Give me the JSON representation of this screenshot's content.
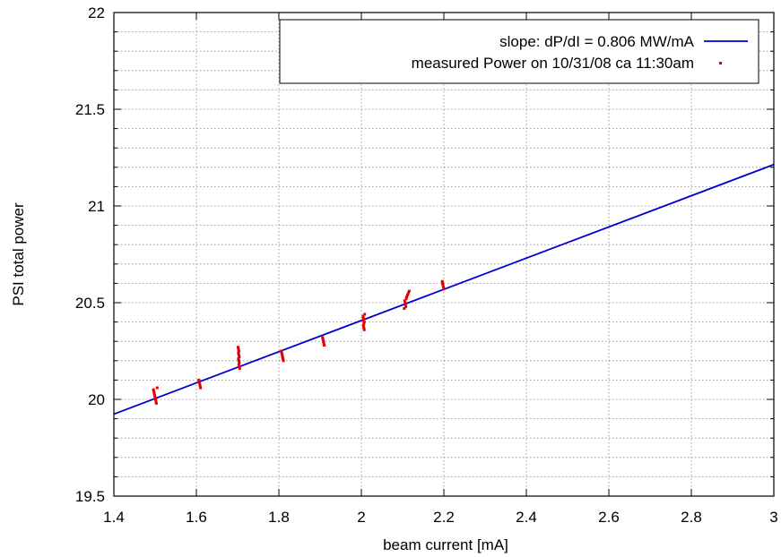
{
  "chart_data": {
    "type": "scatter",
    "title": "",
    "xlabel": "beam current [mA]",
    "ylabel": "PSI total power",
    "xlim": [
      1.4,
      3
    ],
    "ylim": [
      19.5,
      22
    ],
    "x_ticks": [
      "1.4",
      "1.6",
      "1.8",
      "2",
      "2.2",
      "2.4",
      "2.6",
      "2.8",
      "3"
    ],
    "y_ticks": [
      "19.5",
      "20",
      "20.5",
      "21",
      "21.5",
      "22"
    ],
    "grid": true,
    "minor_grid_y": true,
    "legend_position": "top-right",
    "fit_line": {
      "name": "slope: dP/dI = 0.806 MW/mA",
      "color": "#0000cc",
      "x": [
        1.4,
        3
      ],
      "y": [
        19.924,
        21.214
      ]
    },
    "series": [
      {
        "name": "measured Power on 10/31/08 ca 11:30am",
        "color": "#e00000",
        "points": [
          {
            "x": 1.496,
            "y": 20.05
          },
          {
            "x": 1.497,
            "y": 20.04
          },
          {
            "x": 1.498,
            "y": 20.03
          },
          {
            "x": 1.499,
            "y": 20.02
          },
          {
            "x": 1.5,
            "y": 20.01
          },
          {
            "x": 1.501,
            "y": 20.0
          },
          {
            "x": 1.502,
            "y": 19.99
          },
          {
            "x": 1.503,
            "y": 19.98
          },
          {
            "x": 1.505,
            "y": 20.06
          },
          {
            "x": 1.606,
            "y": 20.1
          },
          {
            "x": 1.607,
            "y": 20.09
          },
          {
            "x": 1.608,
            "y": 20.08
          },
          {
            "x": 1.609,
            "y": 20.07
          },
          {
            "x": 1.61,
            "y": 20.06
          },
          {
            "x": 1.701,
            "y": 20.27
          },
          {
            "x": 1.702,
            "y": 20.26
          },
          {
            "x": 1.703,
            "y": 20.25
          },
          {
            "x": 1.702,
            "y": 20.24
          },
          {
            "x": 1.703,
            "y": 20.23
          },
          {
            "x": 1.704,
            "y": 20.22
          },
          {
            "x": 1.702,
            "y": 20.21
          },
          {
            "x": 1.703,
            "y": 20.2
          },
          {
            "x": 1.704,
            "y": 20.19
          },
          {
            "x": 1.703,
            "y": 20.18
          },
          {
            "x": 1.704,
            "y": 20.17
          },
          {
            "x": 1.705,
            "y": 20.16
          },
          {
            "x": 1.806,
            "y": 20.25
          },
          {
            "x": 1.807,
            "y": 20.24
          },
          {
            "x": 1.808,
            "y": 20.23
          },
          {
            "x": 1.809,
            "y": 20.22
          },
          {
            "x": 1.81,
            "y": 20.21
          },
          {
            "x": 1.811,
            "y": 20.2
          },
          {
            "x": 1.906,
            "y": 20.32
          },
          {
            "x": 1.907,
            "y": 20.31
          },
          {
            "x": 1.908,
            "y": 20.3
          },
          {
            "x": 1.909,
            "y": 20.29
          },
          {
            "x": 1.91,
            "y": 20.28
          },
          {
            "x": 2.004,
            "y": 20.43
          },
          {
            "x": 2.005,
            "y": 20.42
          },
          {
            "x": 2.006,
            "y": 20.41
          },
          {
            "x": 2.007,
            "y": 20.4
          },
          {
            "x": 2.006,
            "y": 20.39
          },
          {
            "x": 2.005,
            "y": 20.38
          },
          {
            "x": 2.006,
            "y": 20.37
          },
          {
            "x": 2.007,
            "y": 20.36
          },
          {
            "x": 2.008,
            "y": 20.44
          },
          {
            "x": 2.105,
            "y": 20.51
          },
          {
            "x": 2.106,
            "y": 20.5
          },
          {
            "x": 2.107,
            "y": 20.49
          },
          {
            "x": 2.108,
            "y": 20.48
          },
          {
            "x": 2.109,
            "y": 20.52
          },
          {
            "x": 2.11,
            "y": 20.53
          },
          {
            "x": 2.112,
            "y": 20.54
          },
          {
            "x": 2.114,
            "y": 20.55
          },
          {
            "x": 2.116,
            "y": 20.56
          },
          {
            "x": 2.104,
            "y": 20.47
          },
          {
            "x": 2.196,
            "y": 20.61
          },
          {
            "x": 2.197,
            "y": 20.6
          },
          {
            "x": 2.198,
            "y": 20.59
          },
          {
            "x": 2.199,
            "y": 20.58
          },
          {
            "x": 2.2,
            "y": 20.57
          }
        ]
      }
    ]
  }
}
